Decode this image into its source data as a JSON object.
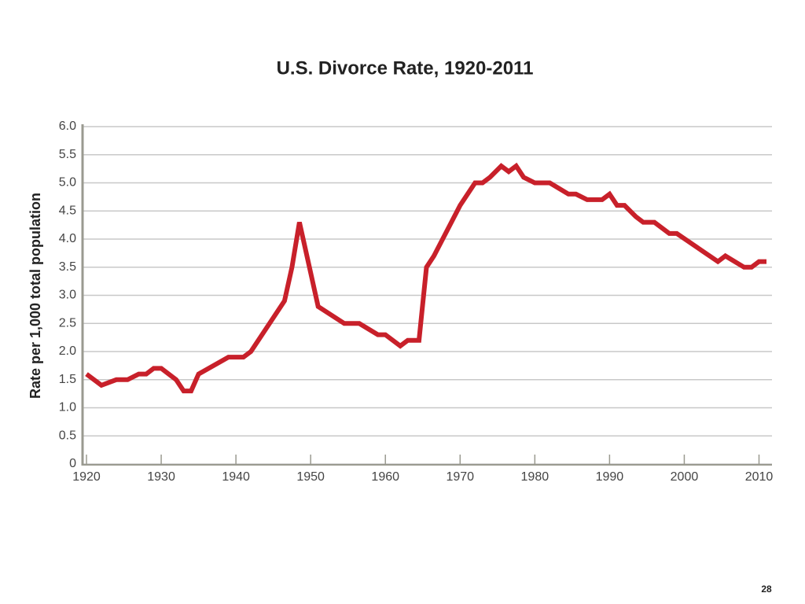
{
  "slide_number": "28",
  "chart_data": {
    "type": "line",
    "title": "U.S. Divorce Rate, 1920-2011",
    "y_label": "Rate per 1,000 total population",
    "x": [
      1920,
      1922,
      1924,
      1925.5,
      1927,
      1928,
      1929,
      1930,
      1932,
      1933,
      1934,
      1935,
      1939,
      1941,
      1942,
      1945,
      1946.5,
      1947.5,
      1948.5,
      1950,
      1951,
      1954.5,
      1956.5,
      1959,
      1960,
      1962,
      1963,
      1964.5,
      1965.5,
      1966.5,
      1970,
      1972,
      1973,
      1974,
      1975.5,
      1976.5,
      1977.5,
      1978.5,
      1980,
      1982,
      1984.5,
      1985.5,
      1987,
      1989,
      1990,
      1991,
      1992,
      1993.5,
      1994.5,
      1996,
      1998,
      1999,
      2004.5,
      2005.5,
      2008,
      2009,
      2010,
      2011
    ],
    "series": [
      {
        "color": "#c8202a",
        "values": [
          1.6,
          1.4,
          1.5,
          1.5,
          1.6,
          1.6,
          1.7,
          1.7,
          1.5,
          1.3,
          1.3,
          1.6,
          1.9,
          1.9,
          2.0,
          2.6,
          2.9,
          3.5,
          4.3,
          3.4,
          2.8,
          2.5,
          2.5,
          2.3,
          2.3,
          2.1,
          2.2,
          2.2,
          3.5,
          3.7,
          4.6,
          5.0,
          5.0,
          5.1,
          5.3,
          5.2,
          5.3,
          5.1,
          5.0,
          5.0,
          4.8,
          4.8,
          4.7,
          4.7,
          4.8,
          4.6,
          4.6,
          4.4,
          4.3,
          4.3,
          4.1,
          4.1,
          3.6,
          3.7,
          3.5,
          3.5,
          3.6,
          3.6
        ]
      }
    ],
    "xlim": [
      1920,
      2011
    ],
    "xticks": [
      1920,
      1930,
      1940,
      1950,
      1960,
      1970,
      1980,
      1990,
      2000,
      2010
    ],
    "ylim": [
      0,
      6
    ],
    "yticks": [
      0,
      0.5,
      {
        "value": 1,
        "label": "1.0"
      },
      1.5,
      {
        "value": 2,
        "label": "2.0"
      },
      2.5,
      {
        "value": 3,
        "label": "3.0"
      },
      3.5,
      {
        "value": 4,
        "label": "4.0"
      },
      4.5,
      {
        "value": 5,
        "label": "5.0"
      },
      5.5,
      {
        "value": 6,
        "label": "6.0"
      }
    ],
    "grid": true
  }
}
